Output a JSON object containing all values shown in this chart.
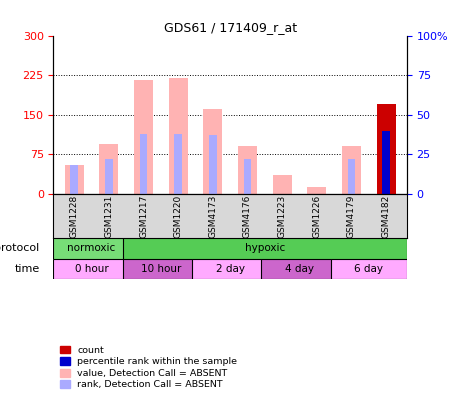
{
  "title": "GDS61 / 171409_r_at",
  "samples": [
    "GSM1228",
    "GSM1231",
    "GSM1217",
    "GSM1220",
    "GSM4173",
    "GSM4176",
    "GSM1223",
    "GSM1226",
    "GSM4179",
    "GSM4182"
  ],
  "value_absent": [
    55,
    95,
    215,
    220,
    160,
    90,
    35,
    12,
    90,
    0
  ],
  "rank_absent_pct": [
    18,
    22,
    38,
    38,
    37,
    22,
    0,
    0,
    22,
    0
  ],
  "count_value": [
    0,
    0,
    0,
    0,
    0,
    0,
    0,
    0,
    0,
    170
  ],
  "rank_present_pct": [
    0,
    0,
    0,
    0,
    0,
    0,
    0,
    0,
    0,
    40
  ],
  "protocol_groups": [
    {
      "label": "normoxic",
      "start": 0,
      "end": 2,
      "color": "#77dd77"
    },
    {
      "label": "hypoxic",
      "start": 2,
      "end": 10,
      "color": "#55cc55"
    }
  ],
  "time_groups": [
    {
      "label": "0 hour",
      "start": 0,
      "end": 2,
      "color": "#ffaaff"
    },
    {
      "label": "10 hour",
      "start": 2,
      "end": 4,
      "color": "#cc66cc"
    },
    {
      "label": "2 day",
      "start": 4,
      "end": 6,
      "color": "#ffaaff"
    },
    {
      "label": "4 day",
      "start": 6,
      "end": 8,
      "color": "#cc66cc"
    },
    {
      "label": "6 day",
      "start": 8,
      "end": 10,
      "color": "#ffaaff"
    }
  ],
  "left_ylim": [
    0,
    300
  ],
  "right_ylim": [
    0,
    100
  ],
  "left_yticks": [
    0,
    75,
    150,
    225,
    300
  ],
  "right_yticks": [
    0,
    25,
    50,
    75,
    100
  ],
  "left_tick_labels": [
    "0",
    "75",
    "150",
    "225",
    "300"
  ],
  "right_tick_labels": [
    "0",
    "25",
    "50",
    "75",
    "100%"
  ],
  "color_value_absent": "#ffb3b3",
  "color_rank_absent": "#aaaaff",
  "color_count": "#cc0000",
  "color_rank_present": "#0000cc",
  "legend_items": [
    {
      "color": "#cc0000",
      "label": "count"
    },
    {
      "color": "#0000cc",
      "label": "percentile rank within the sample"
    },
    {
      "color": "#ffb3b3",
      "label": "value, Detection Call = ABSENT"
    },
    {
      "color": "#aaaaff",
      "label": "rank, Detection Call = ABSENT"
    }
  ],
  "protocol_label": "protocol",
  "time_label": "time"
}
